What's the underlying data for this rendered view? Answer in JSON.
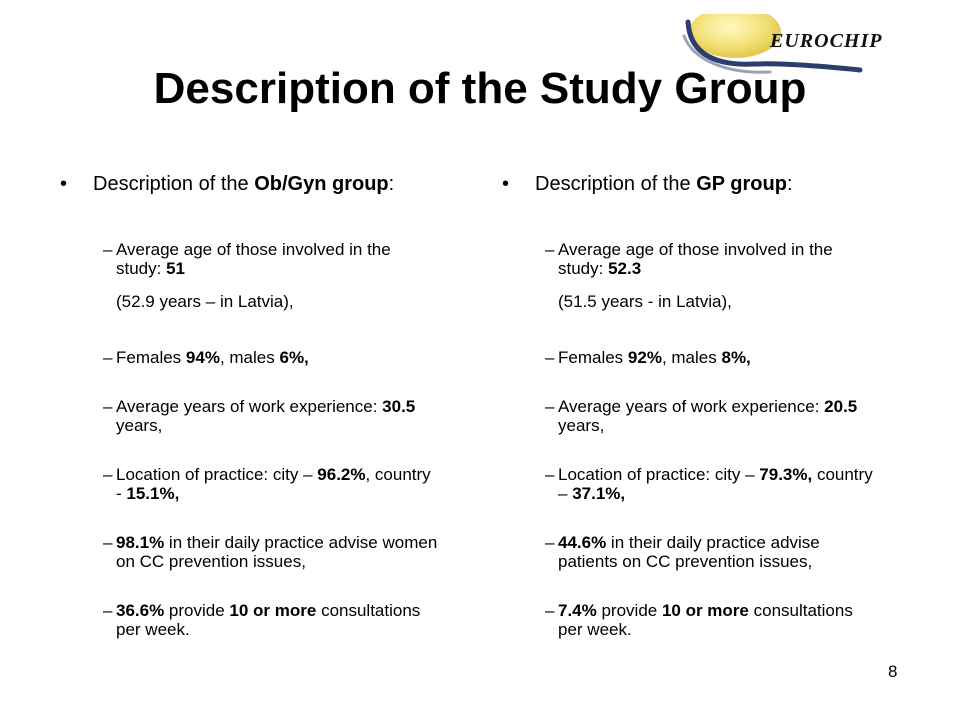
{
  "logo": {
    "text": "EUROCHIP"
  },
  "title": "Description of the Study Group",
  "left": {
    "head_pre": "Description of the ",
    "head_bold": "Ob/Gyn group",
    "head_post": ":",
    "items": [
      {
        "parts": [
          {
            "t": "Average age of those involved in the study: "
          },
          {
            "t": "51",
            "b": true
          }
        ],
        "sub": "(52.9 years – in Latvia),"
      },
      {
        "parts": [
          {
            "t": "Females "
          },
          {
            "t": "94%",
            "b": true
          },
          {
            "t": ", males  "
          },
          {
            "t": "6%,",
            "b": true
          }
        ]
      },
      {
        "parts": [
          {
            "t": "Average years of work experience: "
          },
          {
            "t": "30.5",
            "b": true
          },
          {
            "t": " years,"
          }
        ]
      },
      {
        "parts": [
          {
            "t": "Location of practice: city – "
          },
          {
            "t": "96.2%",
            "b": true
          },
          {
            "t": ", country - "
          },
          {
            "t": "15.1%,",
            "b": true
          }
        ]
      },
      {
        "parts": [
          {
            "t": "98.1%",
            "b": true
          },
          {
            "t": " in their daily practice advise women on CC prevention issues,"
          }
        ]
      },
      {
        "parts": [
          {
            "t": "36.6%",
            "b": true
          },
          {
            "t": " provide "
          },
          {
            "t": "10 or more",
            "b": true
          },
          {
            "t": " consultations per week."
          }
        ]
      }
    ]
  },
  "right": {
    "head_pre": "Description of the ",
    "head_bold": "GP group",
    "head_post": ":",
    "items": [
      {
        "parts": [
          {
            "t": "Average age of those involved in the study: "
          },
          {
            "t": "52.3",
            "b": true
          }
        ],
        "sub": "(51.5 years -  in Latvia),"
      },
      {
        "parts": [
          {
            "t": "Females "
          },
          {
            "t": "92%",
            "b": true
          },
          {
            "t": ", males  "
          },
          {
            "t": "8%,",
            "b": true
          }
        ]
      },
      {
        "parts": [
          {
            "t": "Average years of work experience: "
          },
          {
            "t": "20.5",
            "b": true
          },
          {
            "t": " years,"
          }
        ]
      },
      {
        "parts": [
          {
            "t": "Location of practice: city – "
          },
          {
            "t": "79.3%,",
            "b": true
          },
          {
            "t": " country – "
          },
          {
            "t": "37.1%,",
            "b": true
          }
        ]
      },
      {
        "parts": [
          {
            "t": "44.6%",
            "b": true
          },
          {
            "t": " in their daily practice advise patients on CC prevention issues,"
          }
        ]
      },
      {
        "parts": [
          {
            "t": "7.4%",
            "b": true
          },
          {
            "t": " provide "
          },
          {
            "t": "10 or more",
            "b": true
          },
          {
            "t": " consultations per week."
          }
        ]
      }
    ]
  },
  "page_number": "8"
}
